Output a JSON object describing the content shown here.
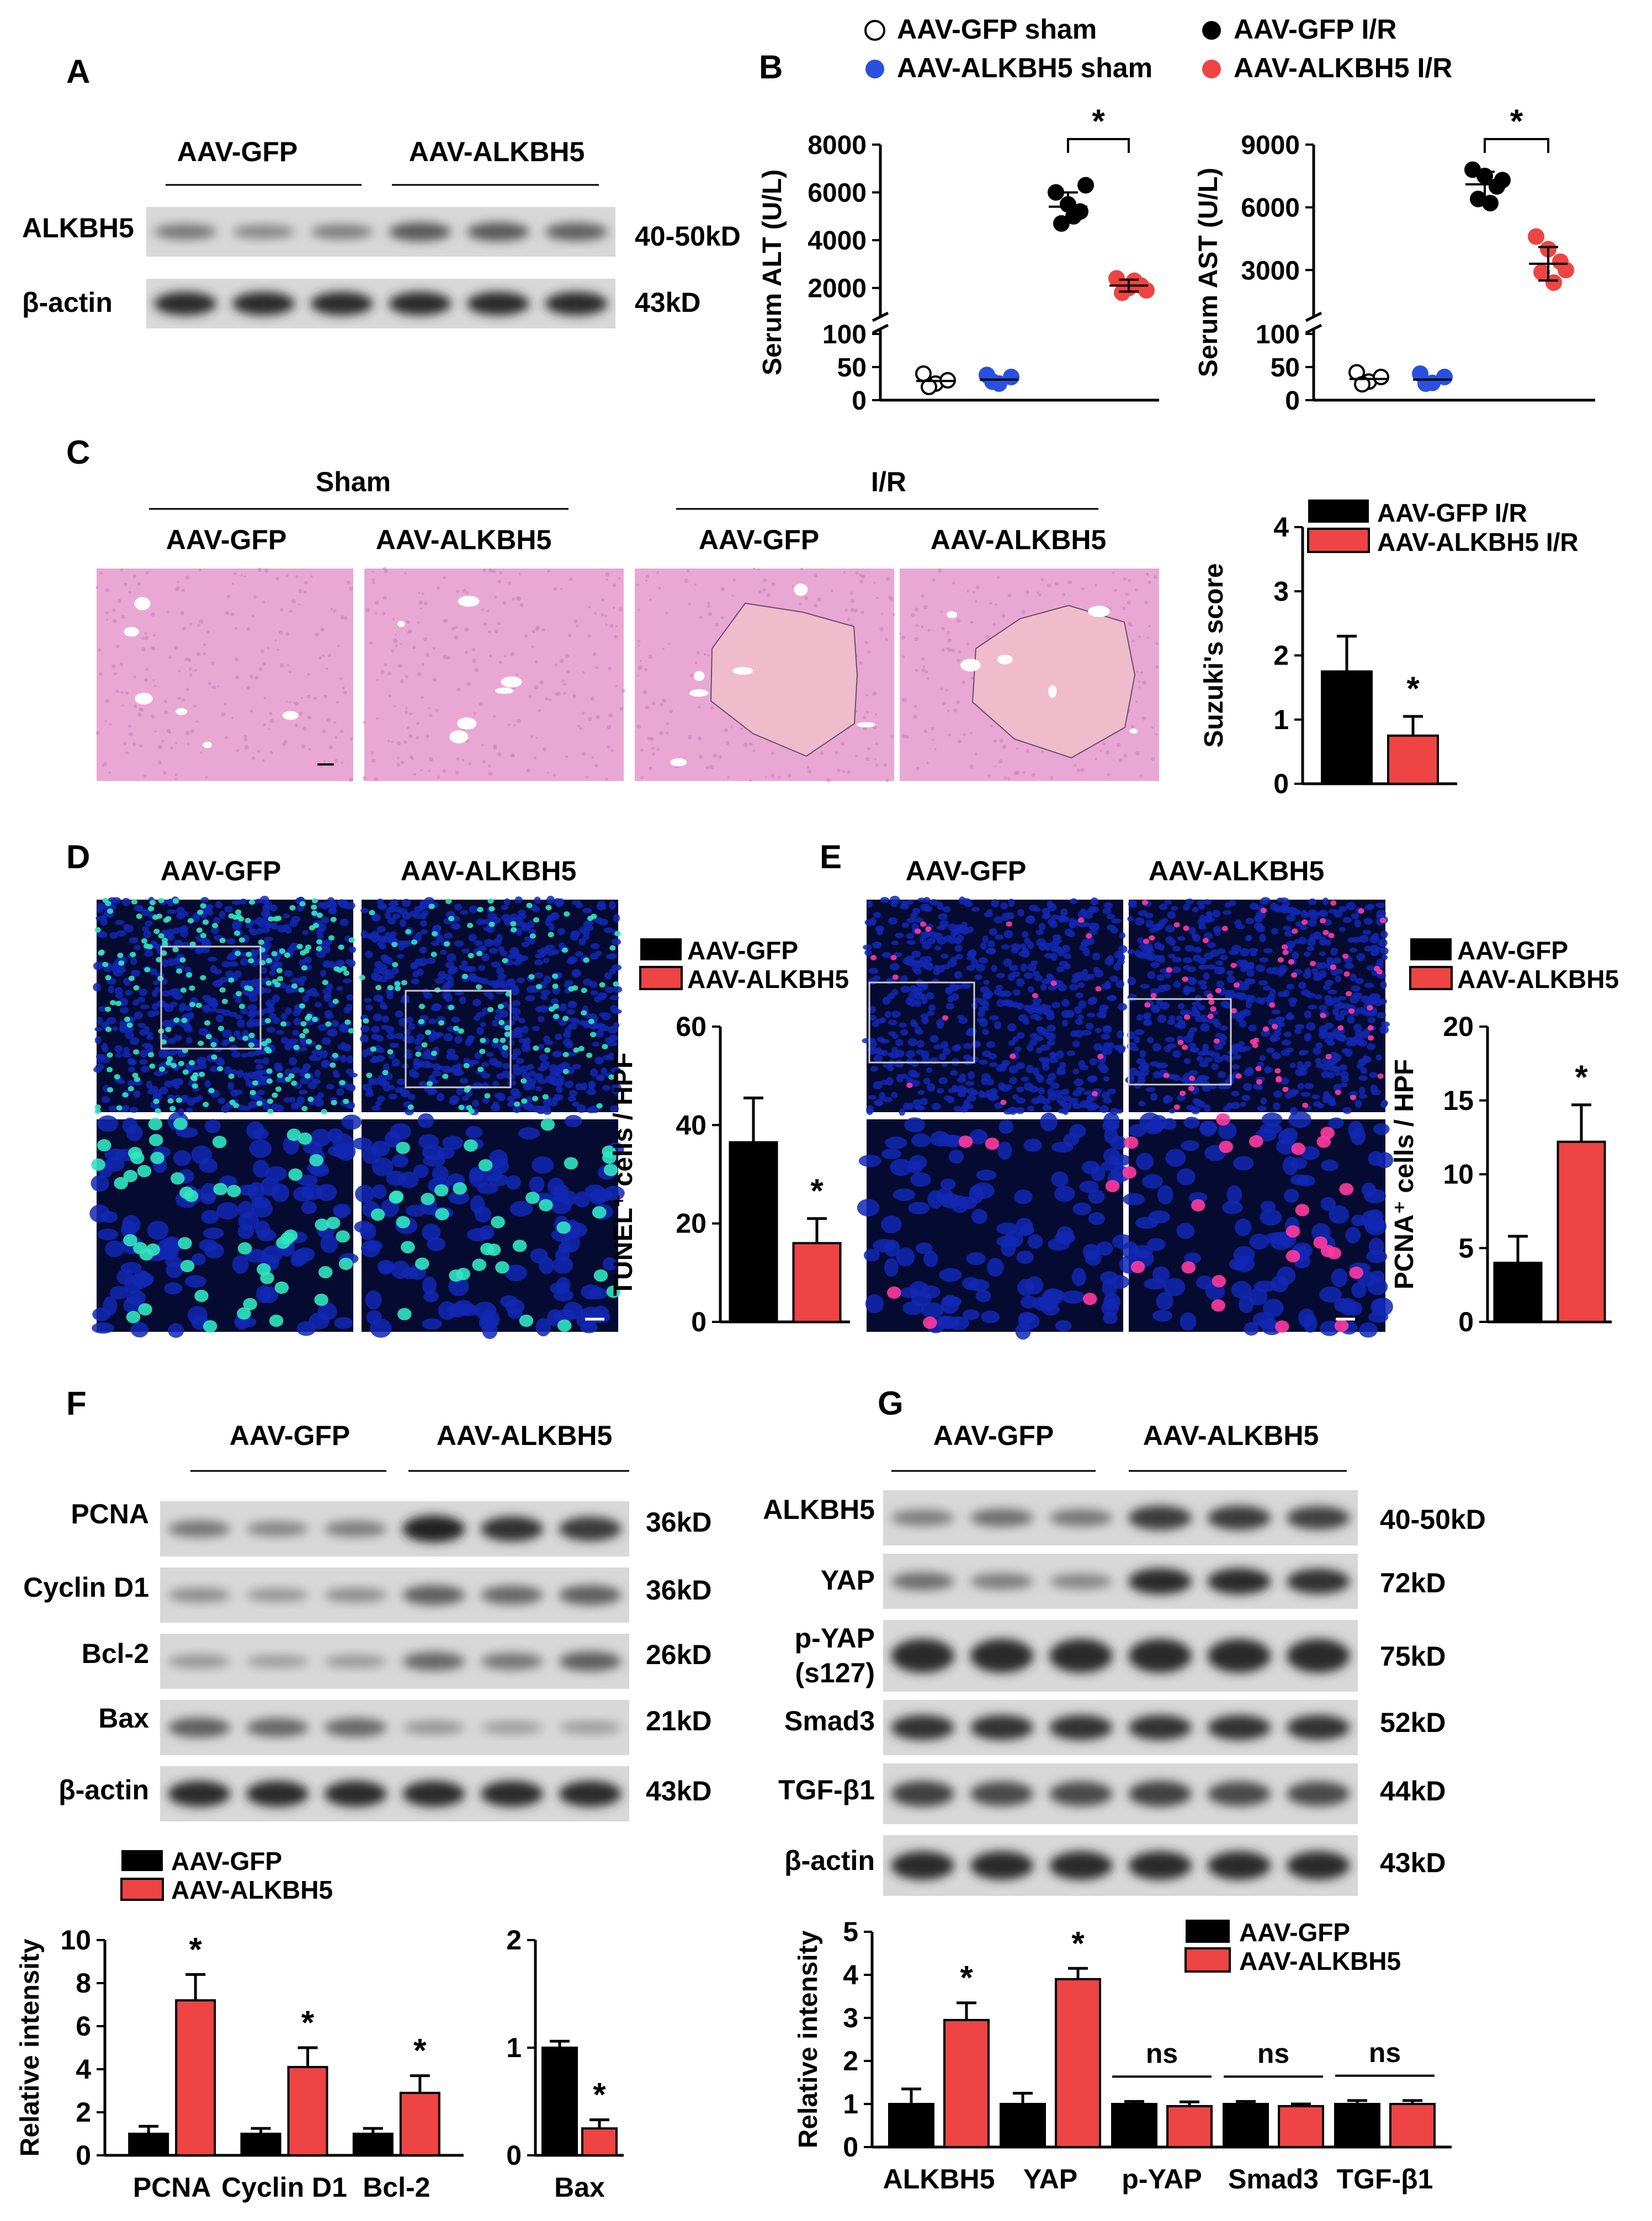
{
  "colors": {
    "gfp": "#000000",
    "alkbh5": "#ee4444",
    "sham_alkbh5": "#2a50e0",
    "he_pink": "#e9a8d4",
    "he_pink_dark": "#d78cc4",
    "nuclei": "#1228b4",
    "tunel": "#30e6c0",
    "pcna": "#ff3aa0"
  },
  "panels": [
    "A",
    "B",
    "C",
    "D",
    "E",
    "F",
    "G"
  ],
  "group_labels": {
    "gfp": [
      "AAV-",
      "GFP"
    ],
    "alkbh5": [
      "AAV-",
      "ALKBH5"
    ]
  },
  "panelA": {
    "rows": [
      {
        "label": "ALKBH5",
        "kd": "40-50kD"
      },
      {
        "label": "β-actin",
        "kd": "43kD"
      }
    ]
  },
  "panelB": {
    "legend": [
      {
        "prefix": "AAV-",
        "gene": "GFP",
        "suffix": " sham",
        "marker": "open-circle"
      },
      {
        "prefix": "AAV-",
        "gene": "GFP",
        "suffix": "  I/R",
        "marker": "black-circle"
      },
      {
        "prefix": "AAV-",
        "gene": "ALKBH5",
        "suffix": " sham",
        "marker": "blue-circle"
      },
      {
        "prefix": "AAV-",
        "gene": "ALKBH5",
        "suffix": " I/R",
        "marker": "red-circle"
      }
    ]
  },
  "panelC": {
    "sham": "Sham",
    "ir": "I/R",
    "legend": [
      {
        "prefix": "AAV-",
        "gene": "GFP",
        "suffix": " I/R"
      },
      {
        "prefix": "AAV-",
        "gene": "ALKBH5",
        "suffix": " I/R"
      }
    ]
  },
  "panelF": {
    "rows": [
      {
        "label": "PCNA",
        "kd": "36kD"
      },
      {
        "label": "Cyclin D1",
        "kd": "36kD"
      },
      {
        "label": "Bcl-2",
        "kd": "26kD"
      },
      {
        "label": "Bax",
        "kd": "21kD"
      },
      {
        "label": "β-actin",
        "kd": "43kD"
      }
    ]
  },
  "panelG": {
    "rows": [
      {
        "label": "ALKBH5",
        "kd": "40-50kD"
      },
      {
        "label": "YAP",
        "kd": "72kD"
      },
      {
        "label": "p-YAP",
        "label2": "(s127)",
        "kd": "75kD"
      },
      {
        "label": "Smad3",
        "kd": "52kD"
      },
      {
        "label": "TGF-β1",
        "kd": "44kD"
      },
      {
        "label": "β-actin",
        "kd": "43kD"
      }
    ]
  },
  "legend_bar": [
    {
      "prefix": "AAV-",
      "gene": "GFP"
    },
    {
      "prefix": "AAV-",
      "gene": "ALKBH5"
    }
  ],
  "chart_data": [
    {
      "id": "alt",
      "type": "scatter",
      "ylabel": "Serum ALT (U/L)",
      "ylim_upper": [
        1000,
        8000
      ],
      "ylim_lower": [
        0,
        100
      ],
      "yticks": [
        "0",
        "50",
        "100",
        "2000",
        "4000",
        "6000",
        "8000"
      ],
      "significance": "*",
      "groups": [
        {
          "name": "AAV-GFP sham",
          "values": [
            40,
            25,
            30,
            20
          ],
          "mean": 29
        },
        {
          "name": "AAV-ALKBH5 sham",
          "values": [
            38,
            25,
            35,
            28
          ],
          "mean": 31
        },
        {
          "name": "AAV-GFP I/R",
          "values": [
            6000,
            5500,
            5200,
            4700,
            5000,
            6300
          ],
          "mean": 5400,
          "sd": 600
        },
        {
          "name": "AAV-ALKBH5 I/R",
          "values": [
            2400,
            2000,
            2100,
            1800,
            2300,
            1900
          ],
          "mean": 2100,
          "sd": 250
        }
      ]
    },
    {
      "id": "ast",
      "type": "scatter",
      "ylabel": "Serum AST (U/L)",
      "ylim_upper": [
        1000,
        9000
      ],
      "ylim_lower": [
        0,
        100
      ],
      "yticks": [
        "0",
        "50",
        "100",
        "3000",
        "6000",
        "9000"
      ],
      "significance": "*",
      "groups": [
        {
          "name": "AAV-GFP sham",
          "values": [
            42,
            28,
            35,
            24
          ],
          "mean": 32
        },
        {
          "name": "AAV-ALKBH5 sham",
          "values": [
            40,
            26,
            35,
            25
          ],
          "mean": 31
        },
        {
          "name": "AAV-GFP I/R",
          "values": [
            7800,
            7500,
            7000,
            6400,
            6200,
            7300
          ],
          "mean": 7100,
          "sd": 600
        },
        {
          "name": "AAV-ALKBH5 I/R",
          "values": [
            4600,
            4000,
            3400,
            2900,
            2400,
            3000
          ],
          "mean": 3300,
          "sd": 800
        }
      ]
    },
    {
      "id": "suzuki",
      "type": "bar",
      "ylabel": "Suzuki's score",
      "ylim": [
        0,
        4
      ],
      "yticks": [
        "0",
        "1",
        "2",
        "3",
        "4"
      ],
      "categories": [
        "AAV-GFP I/R",
        "AAV-ALKBH5 I/R"
      ],
      "values": [
        1.75,
        0.75
      ],
      "errors": [
        0.55,
        0.3
      ],
      "significance": [
        "",
        "*"
      ]
    },
    {
      "id": "tunel",
      "type": "bar",
      "ylabel": "TUNEL⁺ cells / HPF",
      "ylim": [
        0,
        60
      ],
      "yticks": [
        "0",
        "20",
        "40",
        "60"
      ],
      "categories": [
        "AAV-GFP",
        "AAV-ALKBH5"
      ],
      "values": [
        36.5,
        16
      ],
      "errors": [
        9,
        5
      ],
      "significance": [
        "",
        "*"
      ]
    },
    {
      "id": "pcna",
      "type": "bar",
      "ylabel": "PCNA⁺ cells / HPF",
      "ylim": [
        0,
        20
      ],
      "yticks": [
        "0",
        "5",
        "10",
        "15",
        "20"
      ],
      "categories": [
        "AAV-GFP",
        "AAV-ALKBH5"
      ],
      "values": [
        4,
        12.2
      ],
      "errors": [
        1.8,
        2.5
      ],
      "significance": [
        "",
        "*"
      ]
    },
    {
      "id": "f1",
      "type": "bar",
      "ylabel": "Relative intensity",
      "ylim": [
        0,
        10
      ],
      "yticks": [
        "0",
        "2",
        "4",
        "6",
        "8",
        "10"
      ],
      "categories": [
        "PCNA",
        "Cyclin D1",
        "Bcl-2"
      ],
      "series": [
        {
          "name": "AAV-GFP",
          "values": [
            1,
            1,
            1
          ],
          "errors": [
            0.35,
            0.25,
            0.25
          ]
        },
        {
          "name": "AAV-ALKBH5",
          "values": [
            7.2,
            4.1,
            2.9
          ],
          "errors": [
            1.2,
            0.9,
            0.8
          ]
        }
      ],
      "significance": [
        "*",
        "*",
        "*"
      ]
    },
    {
      "id": "f2",
      "type": "bar",
      "ylabel": "",
      "ylim": [
        0,
        2
      ],
      "yticks": [
        "0",
        "1",
        "2"
      ],
      "categories": [
        "Bax"
      ],
      "series": [
        {
          "name": "AAV-GFP",
          "values": [
            1
          ],
          "errors": [
            0.06
          ]
        },
        {
          "name": "AAV-ALKBH5",
          "values": [
            0.25
          ],
          "errors": [
            0.08
          ]
        }
      ],
      "significance": [
        "*"
      ]
    },
    {
      "id": "g",
      "type": "bar",
      "ylabel": "Relative intensity",
      "ylim": [
        0,
        5
      ],
      "yticks": [
        "0",
        "1",
        "2",
        "3",
        "4",
        "5"
      ],
      "categories": [
        "ALKBH5",
        "YAP",
        "p-YAP",
        "Smad3",
        "TGF-β1"
      ],
      "series": [
        {
          "name": "AAV-GFP",
          "values": [
            1,
            1,
            1,
            1,
            1
          ],
          "errors": [
            0.35,
            0.25,
            0.06,
            0.06,
            0.08
          ]
        },
        {
          "name": "AAV-ALKBH5",
          "values": [
            2.95,
            3.9,
            0.95,
            0.95,
            1
          ],
          "errors": [
            0.4,
            0.25,
            0.1,
            0.05,
            0.08
          ]
        }
      ],
      "significance": [
        "*",
        "*",
        "ns",
        "ns",
        "ns"
      ]
    }
  ]
}
